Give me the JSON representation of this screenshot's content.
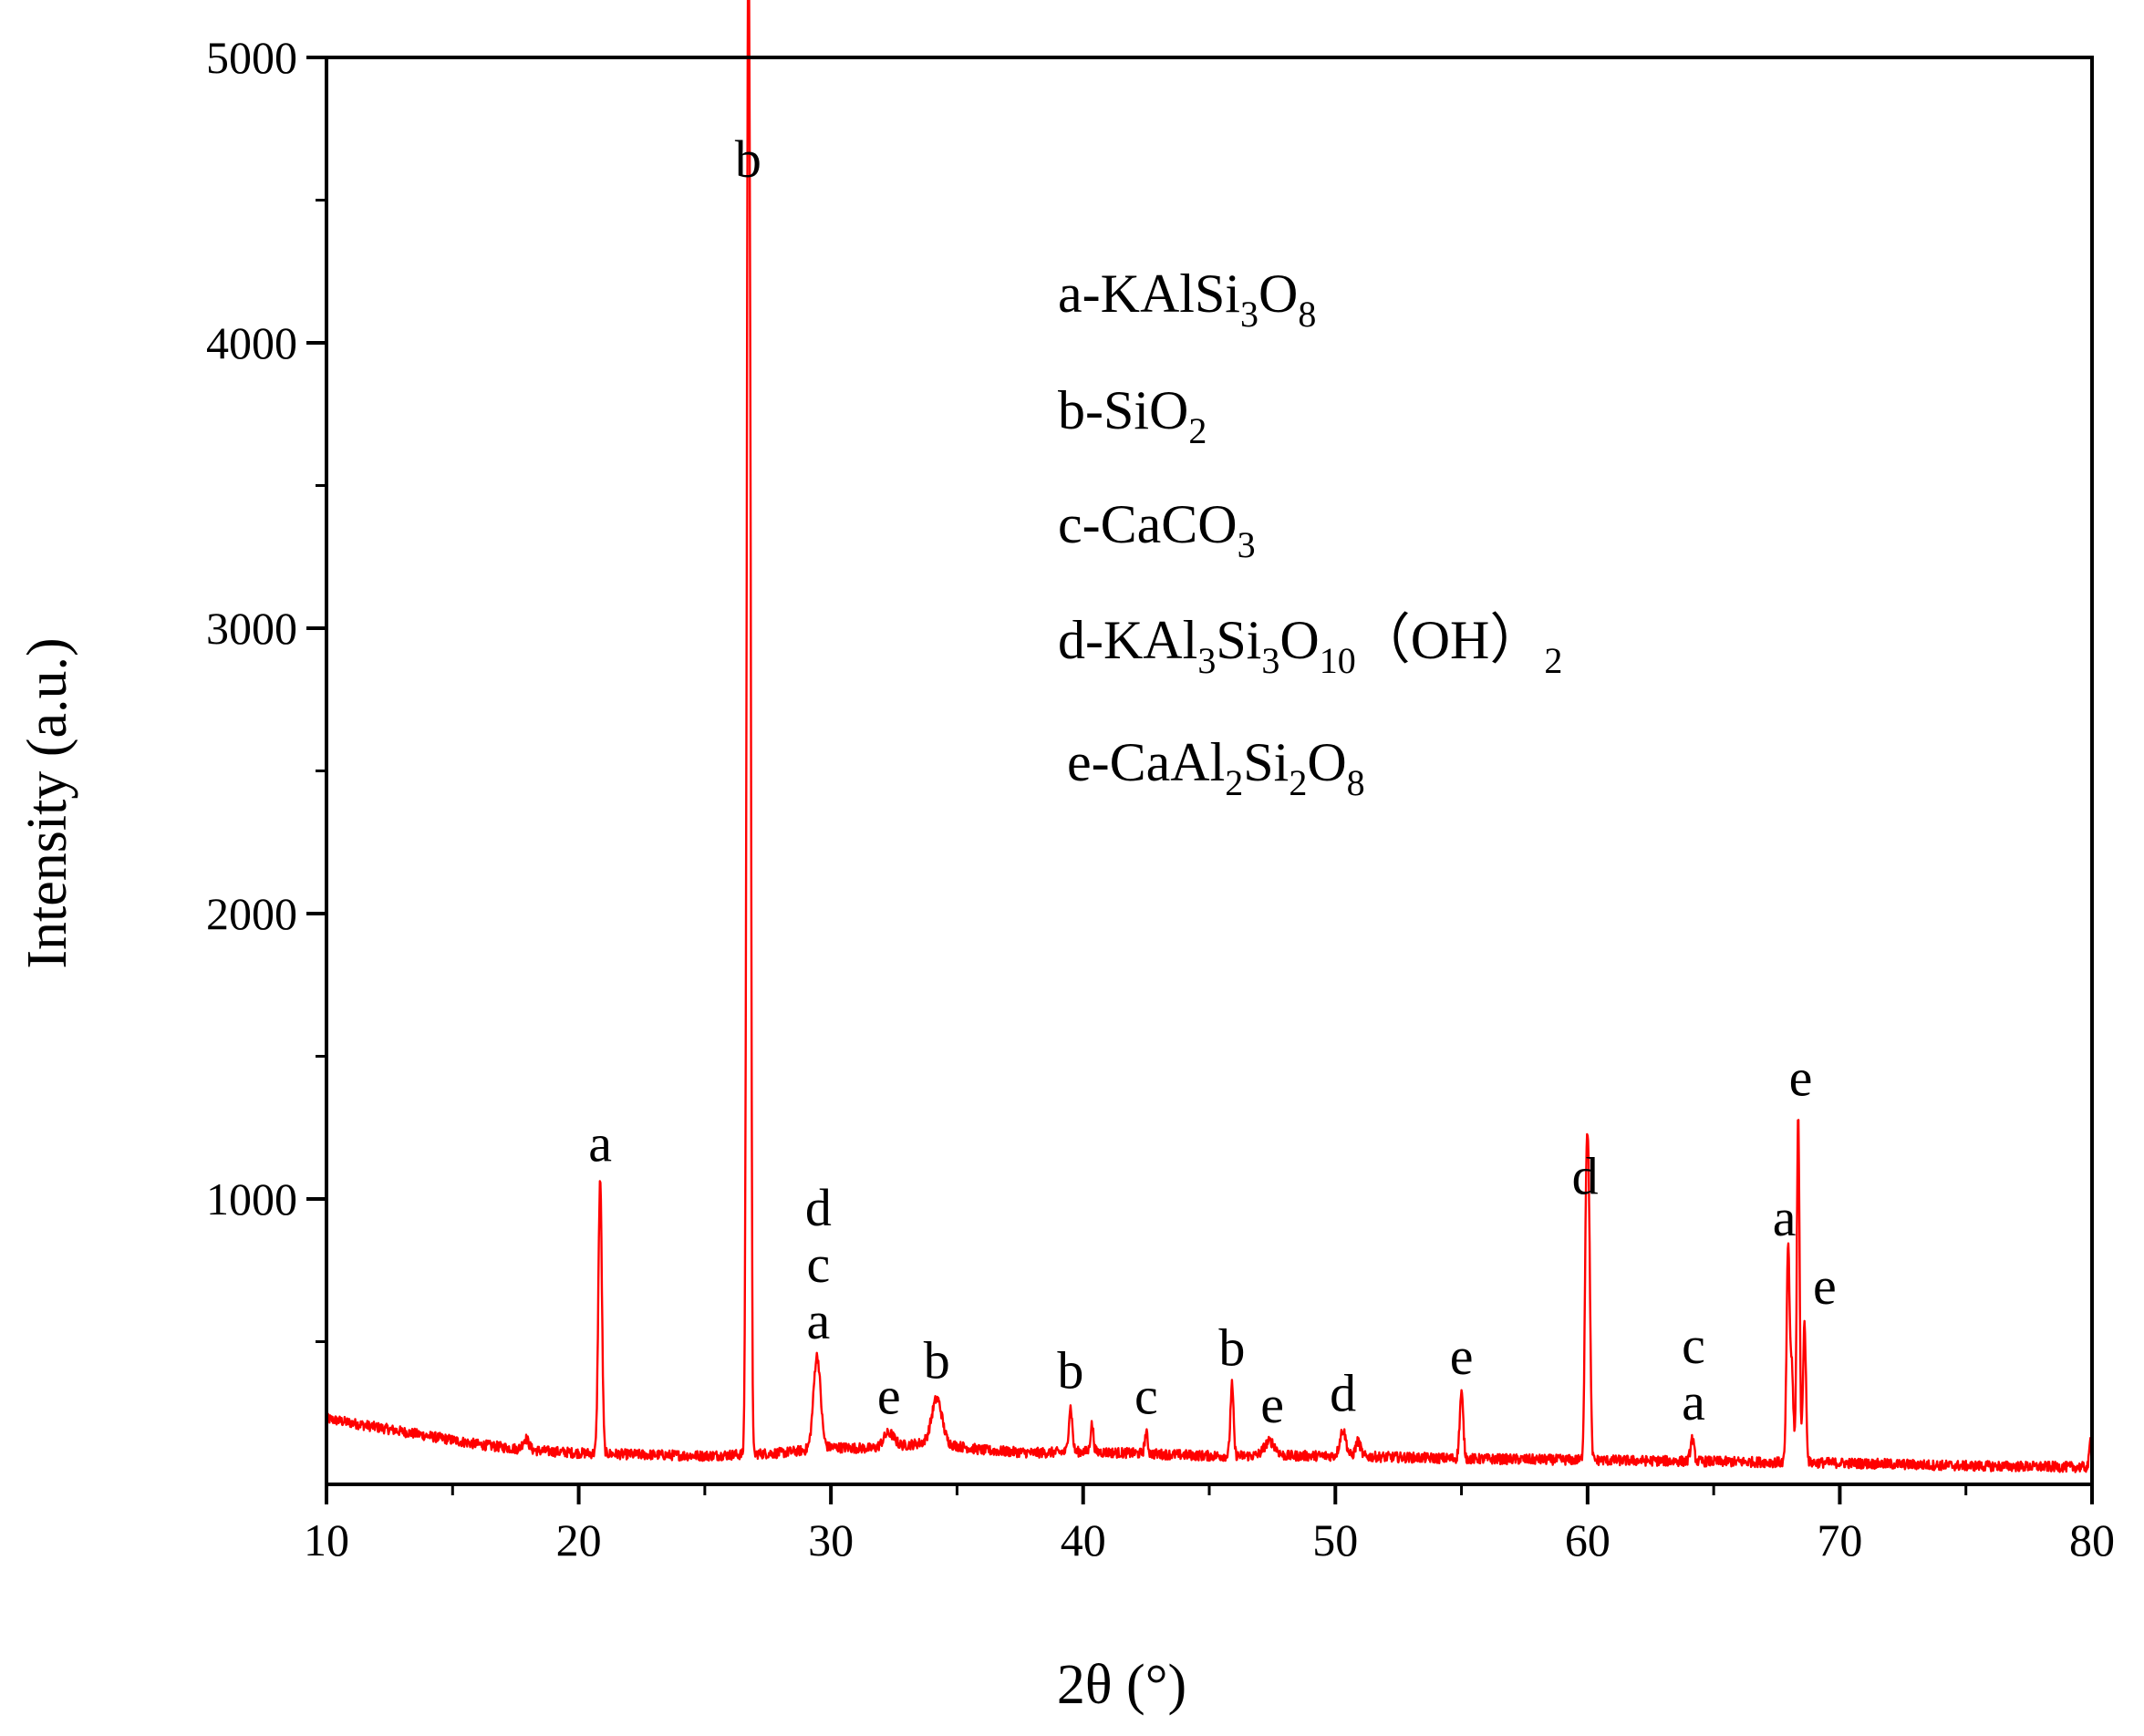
{
  "chart_data": {
    "type": "line",
    "xlabel": "2θ (°)",
    "ylabel": "Intensity (a.u.)",
    "xlim": [
      10,
      80
    ],
    "ylim": [
      0,
      5000
    ],
    "x_ticks": [
      10,
      20,
      30,
      40,
      50,
      60,
      70,
      80
    ],
    "x_tick_labels": [
      "10",
      "20",
      "30",
      "40",
      "50",
      "60",
      "70",
      "80"
    ],
    "y_ticks": [
      1000,
      2000,
      3000,
      4000,
      5000
    ],
    "y_tick_labels": [
      "1000",
      "2000",
      "3000",
      "4000",
      "5000"
    ],
    "grid": false,
    "line_color": "#ff0000",
    "baseline": [
      [
        10,
        230
      ],
      [
        12,
        200
      ],
      [
        14,
        170
      ],
      [
        16,
        140
      ],
      [
        18,
        120
      ],
      [
        20,
        110
      ],
      [
        22,
        105
      ],
      [
        25,
        100
      ],
      [
        28,
        110
      ],
      [
        30,
        130
      ],
      [
        32,
        125
      ],
      [
        34,
        150
      ],
      [
        36,
        120
      ],
      [
        38,
        110
      ],
      [
        40,
        115
      ],
      [
        45,
        100
      ],
      [
        50,
        100
      ],
      [
        55,
        90
      ],
      [
        60,
        85
      ],
      [
        65,
        80
      ],
      [
        70,
        75
      ],
      [
        75,
        65
      ],
      [
        80,
        60
      ]
    ],
    "peaks": [
      {
        "x": 17.9,
        "y": 160,
        "width": 0.12
      },
      {
        "x": 20.85,
        "y": 1070,
        "width": 0.07
      },
      {
        "x": 26.65,
        "y": 1400,
        "width": 0.045
      },
      {
        "x": 26.72,
        "y": 4500,
        "width": 0.045
      },
      {
        "x": 26.8,
        "y": 3150,
        "width": 0.045
      },
      {
        "x": 29.45,
        "y": 450,
        "width": 0.14
      },
      {
        "x": 32.3,
        "y": 180,
        "width": 0.22
      },
      {
        "x": 34.2,
        "y": 300,
        "width": 0.2
      },
      {
        "x": 39.5,
        "y": 270,
        "width": 0.07
      },
      {
        "x": 40.35,
        "y": 210,
        "width": 0.06
      },
      {
        "x": 42.5,
        "y": 180,
        "width": 0.06
      },
      {
        "x": 45.9,
        "y": 350,
        "width": 0.06
      },
      {
        "x": 47.4,
        "y": 150,
        "width": 0.22
      },
      {
        "x": 50.3,
        "y": 190,
        "width": 0.12
      },
      {
        "x": 50.9,
        "y": 150,
        "width": 0.1
      },
      {
        "x": 55.0,
        "y": 320,
        "width": 0.07
      },
      {
        "x": 59.95,
        "y": 950,
        "width": 0.06
      },
      {
        "x": 60.05,
        "y": 850,
        "width": 0.06
      },
      {
        "x": 64.15,
        "y": 160,
        "width": 0.07
      },
      {
        "x": 67.95,
        "y": 820,
        "width": 0.06
      },
      {
        "x": 68.1,
        "y": 400,
        "width": 0.06
      },
      {
        "x": 68.35,
        "y": 1290,
        "width": 0.055
      },
      {
        "x": 68.6,
        "y": 560,
        "width": 0.06
      },
      {
        "x": 79.95,
        "y": 160,
        "width": 0.05
      }
    ],
    "annotations": [
      {
        "x": 20.85,
        "y": 1100,
        "stack": [
          "a"
        ]
      },
      {
        "x": 26.72,
        "y": 4550,
        "stack": [
          "b"
        ]
      },
      {
        "x": 29.5,
        "y": 480,
        "stack": [
          "d",
          "c",
          "a"
        ]
      },
      {
        "x": 32.3,
        "y": 215,
        "stack": [
          "e"
        ]
      },
      {
        "x": 34.2,
        "y": 340,
        "stack": [
          "b"
        ]
      },
      {
        "x": 39.5,
        "y": 305,
        "stack": [
          "b"
        ]
      },
      {
        "x": 42.5,
        "y": 215,
        "stack": [
          "c"
        ]
      },
      {
        "x": 45.9,
        "y": 385,
        "stack": [
          "b"
        ]
      },
      {
        "x": 47.5,
        "y": 185,
        "stack": [
          "e"
        ]
      },
      {
        "x": 50.3,
        "y": 225,
        "stack": [
          "d"
        ]
      },
      {
        "x": 55.0,
        "y": 355,
        "stack": [
          "e"
        ]
      },
      {
        "x": 59.9,
        "y": 985,
        "stack": [
          "d"
        ]
      },
      {
        "x": 64.2,
        "y": 195,
        "stack": [
          "c",
          "a"
        ]
      },
      {
        "x": 67.8,
        "y": 840,
        "stack": [
          "a"
        ]
      },
      {
        "x": 68.45,
        "y": 1330,
        "stack": [
          "e"
        ]
      },
      {
        "x": 69.4,
        "y": 600,
        "stack": [
          "e"
        ]
      }
    ],
    "legend": {
      "placement": "top-center",
      "entries": [
        {
          "letter": "a",
          "parts": [
            {
              "t": "a-KAlSi"
            },
            {
              "t": "3",
              "sub": true
            },
            {
              "t": "O"
            },
            {
              "t": "8",
              "sub": true
            }
          ]
        },
        {
          "letter": "b",
          "parts": [
            {
              "t": "b-SiO"
            },
            {
              "t": "2",
              "sub": true
            }
          ]
        },
        {
          "letter": "c",
          "parts": [
            {
              "t": "c-CaCO"
            },
            {
              "t": "3",
              "sub": true
            }
          ]
        },
        {
          "letter": "d",
          "parts": [
            {
              "t": "d-KAl"
            },
            {
              "t": "3",
              "sub": true
            },
            {
              "t": "Si"
            },
            {
              "t": "3",
              "sub": true
            },
            {
              "t": "O"
            },
            {
              "t": "10",
              "sub": true
            },
            {
              "t": "（OH）"
            },
            {
              "t": "2",
              "sub": true
            }
          ]
        },
        {
          "letter": "e",
          "parts": [
            {
              "t": "e-CaAl"
            },
            {
              "t": "2",
              "sub": true
            },
            {
              "t": "Si"
            },
            {
              "t": "2",
              "sub": true
            },
            {
              "t": "O"
            },
            {
              "t": "8",
              "sub": true
            }
          ]
        }
      ]
    }
  }
}
